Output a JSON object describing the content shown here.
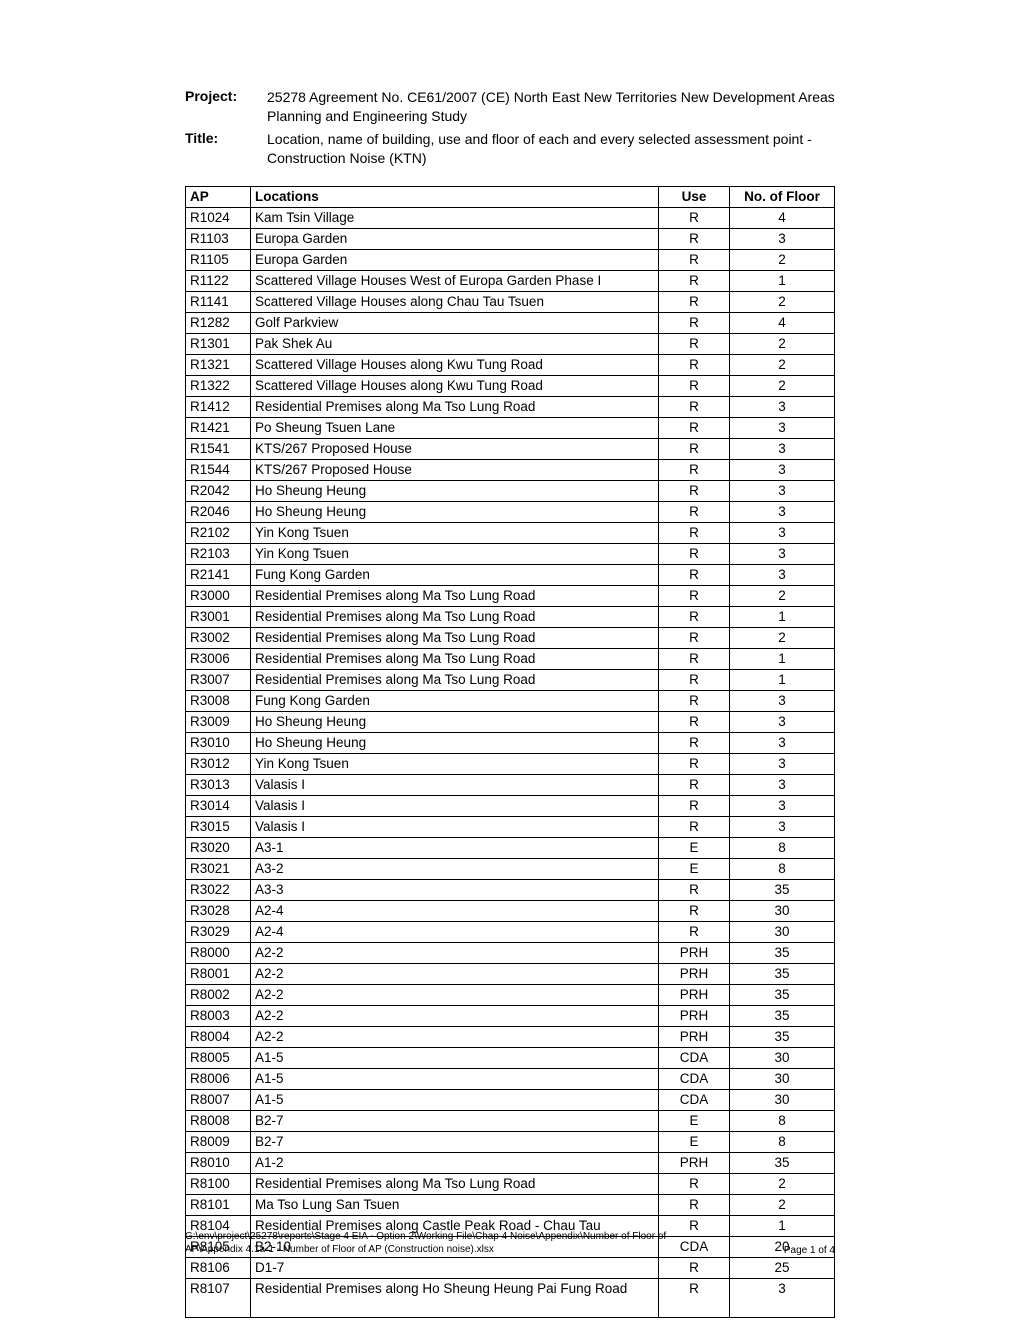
{
  "header": {
    "project_label": "Project:",
    "project_value": "25278 Agreement No. CE61/2007 (CE) North East New Territories New Development Areas Planning and Engineering Study",
    "title_label": "Title:",
    "title_value": "Location, name of building, use and floor of each and every selected assessment point - Construction Noise (KTN)"
  },
  "table": {
    "columns": {
      "ap": "AP",
      "locations": "Locations",
      "use": "Use",
      "floor": "No. of Floor"
    },
    "rows": [
      {
        "ap": "R1024",
        "loc": "Kam Tsin Village",
        "use": "R",
        "floor": "4"
      },
      {
        "ap": "R1103",
        "loc": "Europa Garden",
        "use": "R",
        "floor": "3"
      },
      {
        "ap": "R1105",
        "loc": "Europa Garden",
        "use": "R",
        "floor": "2"
      },
      {
        "ap": "R1122",
        "loc": "Scattered Village Houses West of Europa Garden Phase I",
        "use": "R",
        "floor": "1"
      },
      {
        "ap": "R1141",
        "loc": "Scattered Village Houses along Chau Tau Tsuen",
        "use": "R",
        "floor": "2"
      },
      {
        "ap": "R1282",
        "loc": "Golf Parkview",
        "use": "R",
        "floor": "4"
      },
      {
        "ap": "R1301",
        "loc": "Pak Shek Au",
        "use": "R",
        "floor": "2"
      },
      {
        "ap": "R1321",
        "loc": "Scattered Village Houses along Kwu Tung Road",
        "use": "R",
        "floor": "2"
      },
      {
        "ap": "R1322",
        "loc": "Scattered Village Houses along Kwu Tung Road",
        "use": "R",
        "floor": "2"
      },
      {
        "ap": "R1412",
        "loc": "Residential Premises along Ma Tso Lung Road",
        "use": "R",
        "floor": "3"
      },
      {
        "ap": "R1421",
        "loc": "Po Sheung Tsuen Lane",
        "use": "R",
        "floor": "3"
      },
      {
        "ap": "R1541",
        "loc": "KTS/267 Proposed House",
        "use": "R",
        "floor": "3"
      },
      {
        "ap": "R1544",
        "loc": "KTS/267 Proposed House",
        "use": "R",
        "floor": "3"
      },
      {
        "ap": "R2042",
        "loc": "Ho Sheung Heung",
        "use": "R",
        "floor": "3"
      },
      {
        "ap": "R2046",
        "loc": "Ho Sheung Heung",
        "use": "R",
        "floor": "3"
      },
      {
        "ap": "R2102",
        "loc": "Yin Kong Tsuen",
        "use": "R",
        "floor": "3"
      },
      {
        "ap": "R2103",
        "loc": "Yin Kong Tsuen",
        "use": "R",
        "floor": "3"
      },
      {
        "ap": "R2141",
        "loc": "Fung Kong Garden",
        "use": "R",
        "floor": "3"
      },
      {
        "ap": "R3000",
        "loc": "Residential Premises along Ma Tso Lung Road",
        "use": "R",
        "floor": "2"
      },
      {
        "ap": "R3001",
        "loc": "Residential Premises along Ma Tso Lung Road",
        "use": "R",
        "floor": "1"
      },
      {
        "ap": "R3002",
        "loc": "Residential Premises along Ma Tso Lung Road",
        "use": "R",
        "floor": "2"
      },
      {
        "ap": "R3006",
        "loc": "Residential Premises along Ma Tso Lung Road",
        "use": "R",
        "floor": "1"
      },
      {
        "ap": "R3007",
        "loc": "Residential Premises along Ma Tso Lung Road",
        "use": "R",
        "floor": "1"
      },
      {
        "ap": "R3008",
        "loc": "Fung Kong Garden",
        "use": "R",
        "floor": "3"
      },
      {
        "ap": "R3009",
        "loc": "Ho Sheung Heung",
        "use": "R",
        "floor": "3"
      },
      {
        "ap": "R3010",
        "loc": "Ho Sheung Heung",
        "use": "R",
        "floor": "3"
      },
      {
        "ap": "R3012",
        "loc": "Yin Kong Tsuen",
        "use": "R",
        "floor": "3"
      },
      {
        "ap": "R3013",
        "loc": "Valasis I",
        "use": "R",
        "floor": "3"
      },
      {
        "ap": "R3014",
        "loc": "Valasis I",
        "use": "R",
        "floor": "3"
      },
      {
        "ap": "R3015",
        "loc": "Valasis I",
        "use": "R",
        "floor": "3"
      },
      {
        "ap": "R3020",
        "loc": "A3-1",
        "use": "E",
        "floor": "8"
      },
      {
        "ap": "R3021",
        "loc": "A3-2",
        "use": "E",
        "floor": "8"
      },
      {
        "ap": "R3022",
        "loc": "A3-3",
        "use": "R",
        "floor": "35"
      },
      {
        "ap": "R3028",
        "loc": "A2-4",
        "use": "R",
        "floor": "30"
      },
      {
        "ap": "R3029",
        "loc": "A2-4",
        "use": "R",
        "floor": "30"
      },
      {
        "ap": "R8000",
        "loc": "A2-2",
        "use": "PRH",
        "floor": "35"
      },
      {
        "ap": "R8001",
        "loc": "A2-2",
        "use": "PRH",
        "floor": "35"
      },
      {
        "ap": "R8002",
        "loc": "A2-2",
        "use": "PRH",
        "floor": "35"
      },
      {
        "ap": "R8003",
        "loc": "A2-2",
        "use": "PRH",
        "floor": "35"
      },
      {
        "ap": "R8004",
        "loc": "A2-2",
        "use": "PRH",
        "floor": "35"
      },
      {
        "ap": "R8005",
        "loc": "A1-5",
        "use": "CDA",
        "floor": "30"
      },
      {
        "ap": "R8006",
        "loc": "A1-5",
        "use": "CDA",
        "floor": "30"
      },
      {
        "ap": "R8007",
        "loc": "A1-5",
        "use": "CDA",
        "floor": "30"
      },
      {
        "ap": "R8008",
        "loc": "B2-7",
        "use": "E",
        "floor": "8"
      },
      {
        "ap": "R8009",
        "loc": "B2-7",
        "use": "E",
        "floor": "8"
      },
      {
        "ap": "R8010",
        "loc": "A1-2",
        "use": "PRH",
        "floor": "35"
      },
      {
        "ap": "R8100",
        "loc": "Residential Premises along Ma Tso Lung Road",
        "use": "R",
        "floor": "2"
      },
      {
        "ap": "R8101",
        "loc": "Ma Tso Lung San Tsuen",
        "use": "R",
        "floor": "2"
      },
      {
        "ap": "R8104",
        "loc": "Residential Premises along Castle Peak Road - Chau Tau",
        "use": "R",
        "floor": "1"
      },
      {
        "ap": "R8105",
        "loc": "B2-10",
        "use": "CDA",
        "floor": "20"
      },
      {
        "ap": "R8106",
        "loc": "D1-7",
        "use": "R",
        "floor": "25"
      },
      {
        "ap": "R8107",
        "loc": "Residential Premises along Ho Sheung Heung Pai Fung Road",
        "use": "R",
        "floor": "3"
      }
    ]
  },
  "footer": {
    "path": "G:\\env\\project\\25278\\reports\\Stage 4 EIA - Option 2\\Working File\\Chap 4 Noise\\Appendix\\Number of Floor of AP\\Appendix 4.1a-1 - Number of Floor of AP (Construction noise).xlsx",
    "page": "Page 1 of 4"
  }
}
